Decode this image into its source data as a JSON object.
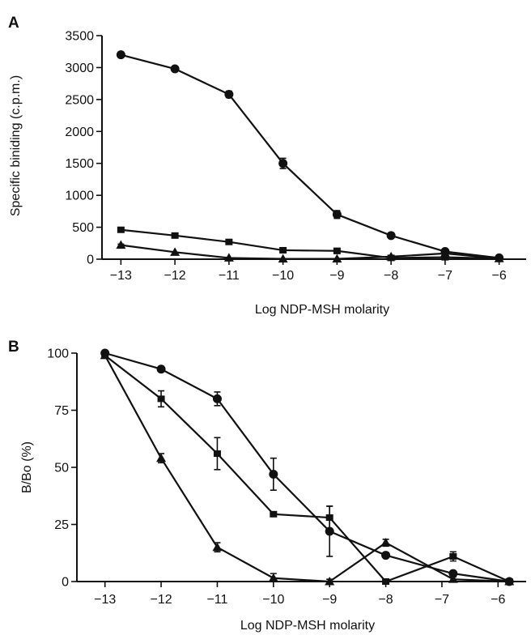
{
  "chart_data": [
    {
      "panel": "A",
      "type": "line",
      "xlabel": "Log NDP-MSH molarity",
      "ylabel": "Specific biniding (c.p.m.)",
      "xlim": [
        -13.35,
        -5.5
      ],
      "ylim": [
        0,
        3500
      ],
      "xticks": [
        -13,
        -12,
        -11,
        -10,
        -9,
        -8,
        -7,
        -6
      ],
      "xtick_labels": [
        "−13",
        "−12",
        "−11",
        "−10",
        "−9",
        "−8",
        "−7",
        "−6"
      ],
      "yticks": [
        0,
        500,
        1000,
        1500,
        2000,
        2500,
        3000,
        3500
      ],
      "ytick_labels": [
        "0",
        "500",
        "1000",
        "1500",
        "2000",
        "2500",
        "3000",
        "3500"
      ],
      "grid": false,
      "series": [
        {
          "marker": "circle",
          "x": [
            -13,
            -12,
            -11,
            -10,
            -9,
            -8,
            -7,
            -6
          ],
          "y": [
            3200,
            2980,
            2580,
            1500,
            700,
            370,
            120,
            20
          ],
          "err": [
            40,
            30,
            50,
            80,
            60,
            20,
            20,
            10
          ]
        },
        {
          "marker": "square",
          "x": [
            -13,
            -12,
            -11,
            -10,
            -9,
            -8,
            -7,
            -6
          ],
          "y": [
            460,
            370,
            270,
            140,
            130,
            20,
            30,
            10
          ],
          "err": [
            20,
            20,
            20,
            40,
            40,
            15,
            15,
            5
          ]
        },
        {
          "marker": "triangle",
          "x": [
            -13,
            -12,
            -11,
            -10,
            -9,
            -8,
            -7,
            -6
          ],
          "y": [
            220,
            110,
            20,
            5,
            5,
            40,
            90,
            10
          ],
          "err": [
            15,
            10,
            8,
            5,
            5,
            15,
            15,
            5
          ]
        }
      ]
    },
    {
      "panel": "B",
      "type": "line",
      "xlabel": "Log NDP-MSH molarity",
      "ylabel": "B/Bo (%)",
      "xlim": [
        -13.5,
        -5.5
      ],
      "ylim": [
        0,
        100
      ],
      "xticks": [
        -13,
        -12,
        -11,
        -10,
        -9,
        -8,
        -7,
        -6
      ],
      "xtick_labels": [
        "−13",
        "−12",
        "−11",
        "−10",
        "−9",
        "−8",
        "−7",
        "−6"
      ],
      "yticks": [
        0,
        25,
        50,
        75,
        100
      ],
      "ytick_labels": [
        "0",
        "25",
        "50",
        "75",
        "100"
      ],
      "grid": false,
      "series": [
        {
          "marker": "circle",
          "x": [
            -13,
            -12,
            -11,
            -10,
            -9,
            -8,
            -6.8,
            -5.8
          ],
          "y": [
            100,
            93,
            80,
            47,
            22,
            11.5,
            3.5,
            0
          ],
          "err": [
            0.8,
            1,
            3,
            7,
            11,
            1,
            1,
            0.5
          ]
        },
        {
          "marker": "square",
          "x": [
            -13,
            -12,
            -11,
            -10,
            -9,
            -8,
            -6.8,
            -5.8
          ],
          "y": [
            99,
            80,
            56,
            29.5,
            28,
            0,
            11,
            0
          ],
          "err": [
            1,
            3.5,
            7,
            1,
            5,
            0.5,
            2,
            0.5
          ]
        },
        {
          "marker": "triangle",
          "x": [
            -13,
            -12,
            -11,
            -10,
            -9,
            -8,
            -6.8,
            -5.8
          ],
          "y": [
            99,
            54,
            15,
            1.5,
            0,
            17,
            1,
            0
          ],
          "err": [
            1,
            2,
            2,
            2,
            1,
            1.5,
            1,
            0.5
          ]
        }
      ]
    }
  ]
}
